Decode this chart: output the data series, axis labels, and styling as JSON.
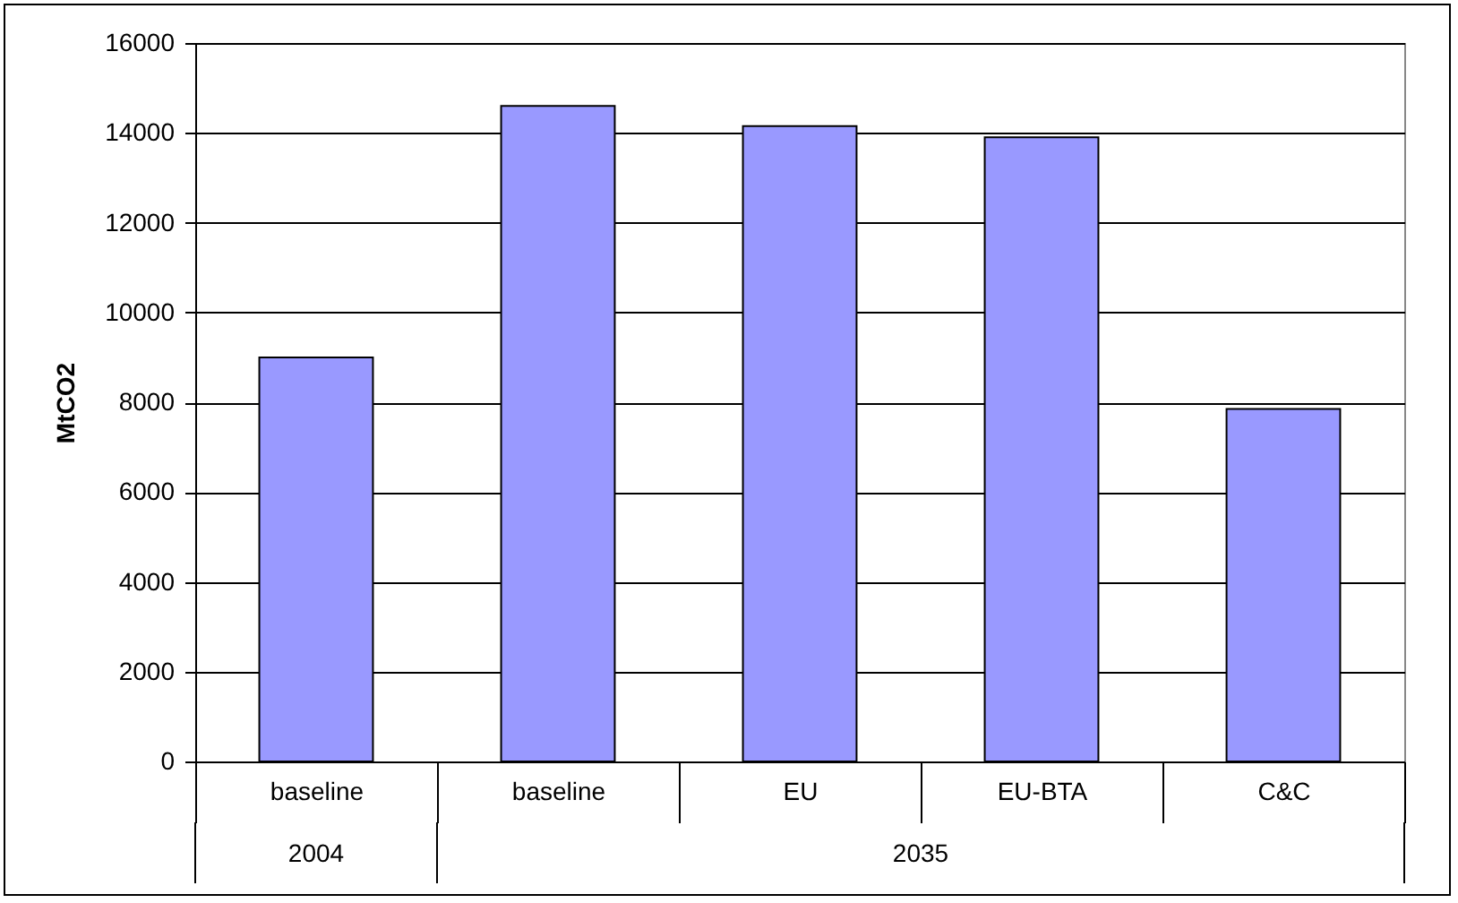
{
  "chart_data": {
    "type": "bar",
    "ylabel": "MtCO2",
    "categories": [
      "baseline",
      "baseline",
      "EU",
      "EU-BTA",
      "C&C"
    ],
    "values": [
      9000,
      14600,
      14150,
      13900,
      7850
    ],
    "color": "#9999ff",
    "ylim": [
      0,
      16000
    ],
    "yticks": [
      0,
      2000,
      4000,
      6000,
      8000,
      10000,
      12000,
      14000,
      16000
    ],
    "grid": "y",
    "annotations": [
      "2004",
      "2035"
    ]
  }
}
